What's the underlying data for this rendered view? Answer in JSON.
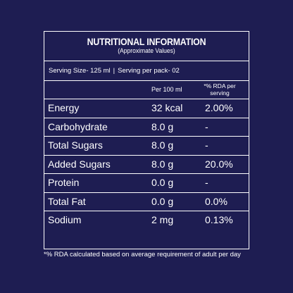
{
  "header": {
    "title": "NUTRITIONAL INFORMATION",
    "subtitle": "(Approximate Values)"
  },
  "serving": {
    "size": "Serving Size- 125 ml",
    "separator": "|",
    "per_pack": "Serving per pack- 02"
  },
  "columns": {
    "per100": "Per 100 ml",
    "rda": "*% RDA per serving"
  },
  "rows": [
    {
      "name": "Energy",
      "amount": "32 kcal",
      "rda": "2.00%"
    },
    {
      "name": "Carbohydrate",
      "amount": "8.0 g",
      "rda": "-"
    },
    {
      "name": "Total Sugars",
      "amount": "8.0 g",
      "rda": "-"
    },
    {
      "name": "Added Sugars",
      "amount": "8.0 g",
      "rda": "20.0%"
    },
    {
      "name": "Protein",
      "amount": "0.0 g",
      "rda": "-"
    },
    {
      "name": "Total Fat",
      "amount": "0.0 g",
      "rda": "0.0%"
    },
    {
      "name": "Sodium",
      "amount": "2 mg",
      "rda": "0.13%"
    }
  ],
  "footnote": "*% RDA calculated based on average requirement of adult per  day",
  "colors": {
    "background": "#1e1d52",
    "text": "#ffffff"
  }
}
